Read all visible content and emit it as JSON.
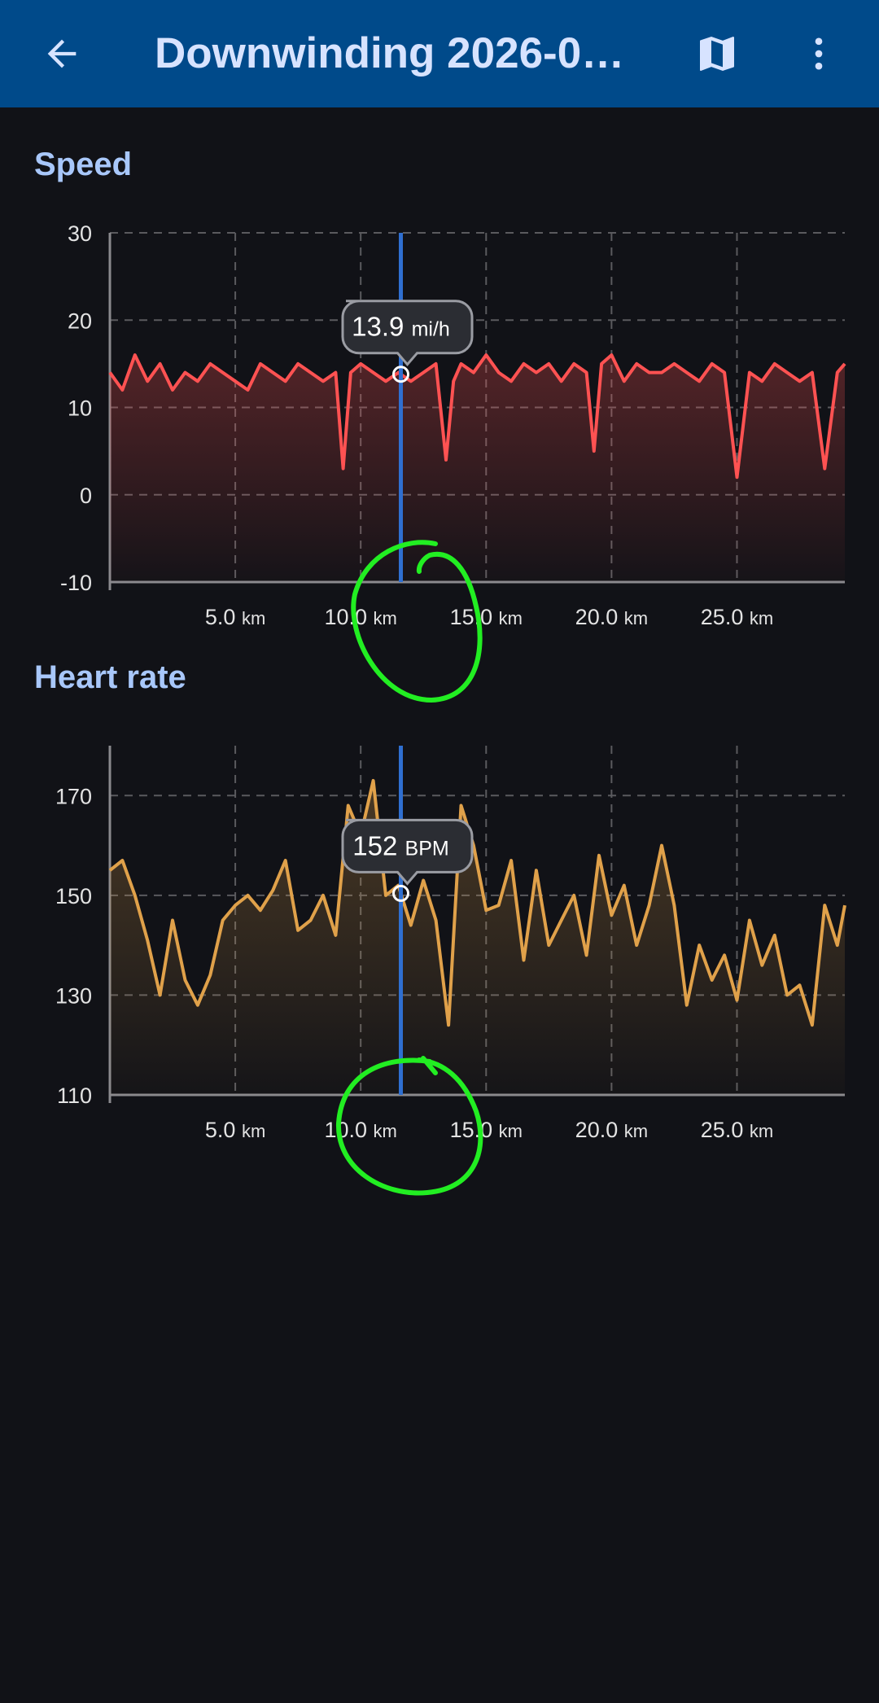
{
  "appbar": {
    "title": "Downwinding 2026-0…",
    "back_icon": "arrow-left-icon",
    "map_icon": "map-icon",
    "more_icon": "more-vertical-icon",
    "bg_color": "#004a8a"
  },
  "sections": {
    "speed_title": "Speed",
    "heart_title": "Heart rate"
  },
  "chart_data": [
    {
      "type": "area",
      "title": "Speed",
      "ylim": [
        -10,
        30
      ],
      "yticks": [
        "30",
        "20",
        "10",
        "0",
        "-10"
      ],
      "xlim": [
        0,
        29.3
      ],
      "xticks": [
        5.0,
        10.0,
        15.0,
        20.0,
        25.0
      ],
      "xtick_labels": [
        "5.0",
        "10.0",
        "15.0",
        "20.0",
        "25.0"
      ],
      "x_unit": "km",
      "grid": true,
      "color": "#ff5252",
      "x": [
        0,
        0.5,
        1,
        1.5,
        2,
        2.5,
        3,
        3.5,
        4,
        4.5,
        5,
        5.5,
        6,
        6.5,
        7,
        7.5,
        8,
        8.5,
        9,
        9.3,
        9.6,
        10,
        10.5,
        11,
        11.5,
        12,
        12.5,
        13,
        13.4,
        13.7,
        14,
        14.5,
        15,
        15.5,
        16,
        16.5,
        17,
        17.5,
        18,
        18.5,
        19,
        19.3,
        19.6,
        20,
        20.5,
        21,
        21.5,
        22,
        22.5,
        23,
        23.5,
        24,
        24.5,
        25,
        25.5,
        26,
        26.5,
        27,
        27.5,
        28,
        28.5,
        29,
        29.3
      ],
      "values": [
        14,
        12,
        16,
        13,
        15,
        12,
        14,
        13,
        15,
        14,
        13,
        12,
        15,
        14,
        13,
        15,
        14,
        13,
        14,
        3,
        14,
        15,
        14,
        13,
        14,
        13,
        14,
        15,
        4,
        13,
        15,
        14,
        16,
        14,
        13,
        15,
        14,
        15,
        13,
        15,
        14,
        5,
        15,
        16,
        13,
        15,
        14,
        14,
        15,
        14,
        13,
        15,
        14,
        2,
        14,
        13,
        15,
        14,
        13,
        14,
        3,
        14,
        15
      ],
      "cursor_x": 11.6,
      "cursor_label": "13.9",
      "cursor_unit": "mi/h"
    },
    {
      "type": "area",
      "title": "Heart rate",
      "ylim": [
        110,
        180
      ],
      "yticks": [
        "170",
        "150",
        "130",
        "110"
      ],
      "xlim": [
        0,
        29.3
      ],
      "xticks": [
        5.0,
        10.0,
        15.0,
        20.0,
        25.0
      ],
      "xtick_labels": [
        "5.0",
        "10.0",
        "15.0",
        "20.0",
        "25.0"
      ],
      "x_unit": "km",
      "grid": true,
      "color": "#e0a14a",
      "x": [
        0,
        0.5,
        1,
        1.5,
        2,
        2.5,
        3,
        3.5,
        4,
        4.5,
        5,
        5.5,
        6,
        6.5,
        7,
        7.5,
        8,
        8.5,
        9,
        9.5,
        10,
        10.5,
        11,
        11.5,
        12,
        12.5,
        13,
        13.5,
        14,
        14.5,
        15,
        15.5,
        16,
        16.5,
        17,
        17.5,
        18,
        18.5,
        19,
        19.5,
        20,
        20.5,
        21,
        21.5,
        22,
        22.5,
        23,
        23.5,
        24,
        24.5,
        25,
        25.5,
        26,
        26.5,
        27,
        27.5,
        28,
        28.5,
        29,
        29.3
      ],
      "values": [
        155,
        157,
        150,
        141,
        130,
        145,
        133,
        128,
        134,
        145,
        148,
        150,
        147,
        151,
        157,
        143,
        145,
        150,
        142,
        168,
        162,
        173,
        150,
        152,
        144,
        153,
        145,
        124,
        168,
        160,
        147,
        148,
        157,
        137,
        155,
        140,
        145,
        150,
        138,
        158,
        146,
        152,
        140,
        148,
        160,
        148,
        128,
        140,
        133,
        138,
        129,
        145,
        136,
        142,
        130,
        132,
        124,
        148,
        140,
        148
      ]
    },
    {
      "cursor_x": 11.6,
      "cursor_label": "152",
      "cursor_unit": "BPM"
    }
  ]
}
